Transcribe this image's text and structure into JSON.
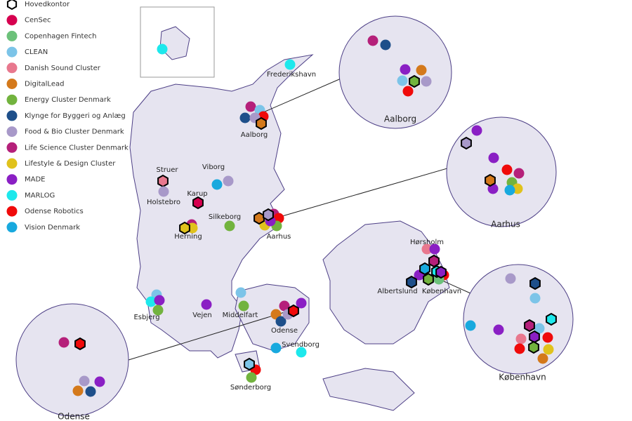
{
  "legend": {
    "items": [
      {
        "label": "Hovedkontor",
        "color": "#ffffff"
      },
      {
        "label": "CenSec",
        "color": "#d6004f"
      },
      {
        "label": "Copenhagen Fintech",
        "color": "#6cc17a"
      },
      {
        "label": "CLEAN",
        "color": "#7cc4e8"
      },
      {
        "label": "Danish Sound Cluster",
        "color": "#e8788e"
      },
      {
        "label": "DigitalLead",
        "color": "#d4791b"
      },
      {
        "label": "Energy Cluster Denmark",
        "color": "#72b33e"
      },
      {
        "label": "Klynge for Byggeri og Anlæg",
        "color": "#1e4f8a"
      },
      {
        "label": "Food & Bio Cluster Denmark",
        "color": "#a899c9"
      },
      {
        "label": "Life Science Cluster Denmark",
        "color": "#b5207a"
      },
      {
        "label": "Lifestyle & Design Cluster",
        "color": "#e0c21c"
      },
      {
        "label": "MADE",
        "color": "#8a1fc4"
      },
      {
        "label": "MARLOG",
        "color": "#1de8ec"
      },
      {
        "label": "Odense Robotics",
        "color": "#f00a0a"
      },
      {
        "label": "Vision Denmark",
        "color": "#18a9de"
      }
    ]
  },
  "cities": [
    "Frederikshavn",
    "Aalborg",
    "Struer",
    "Viborg",
    "Holstebro",
    "Karup",
    "Silkeborg",
    "Herning",
    "Aarhus",
    "Hørsholm",
    "Albertslund",
    "København",
    "Esbjerg",
    "Vejen",
    "Middelfart",
    "Odense",
    "Svendborg",
    "Sønderborg"
  ],
  "insets": [
    "Aalborg",
    "Aarhus",
    "København",
    "Odense"
  ]
}
